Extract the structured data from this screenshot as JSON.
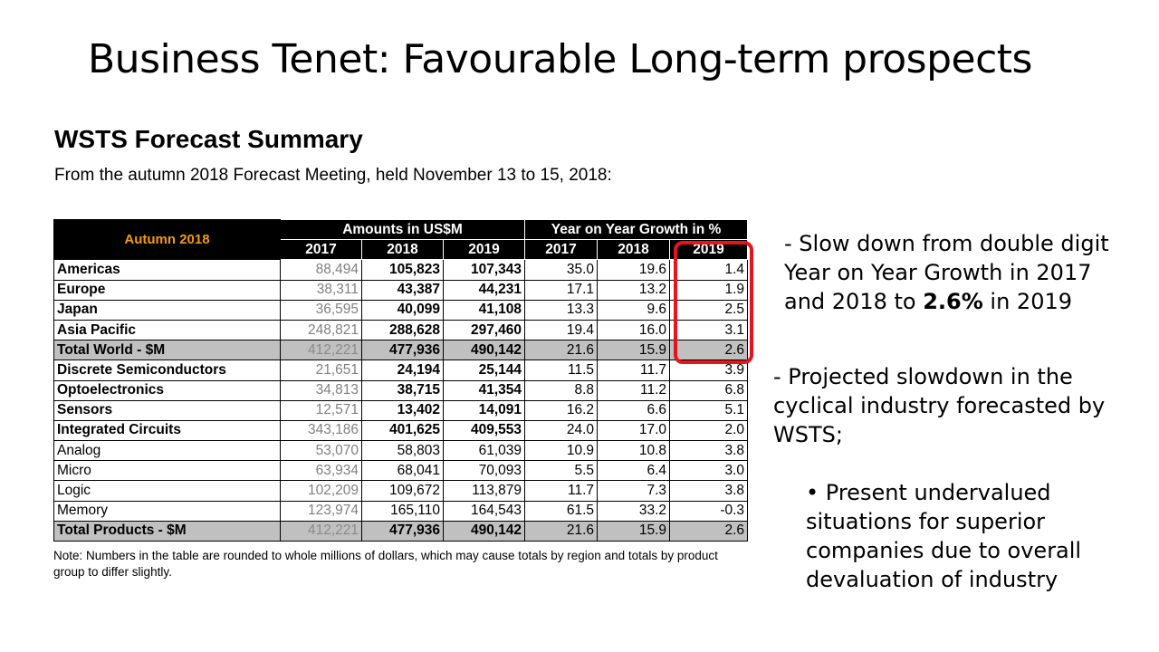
{
  "slide": {
    "title": "Business Tenet: Favourable Long-term prospects"
  },
  "wsts": {
    "title": "WSTS Forecast Summary",
    "subtitle": "From the autumn 2018 Forecast Meeting, held November 13 to 15, 2018:",
    "table": {
      "corner": "Autumn 2018",
      "group_amounts": "Amounts in US$M",
      "group_growth": "Year on Year Growth in %",
      "year_headers": [
        "2017",
        "2018",
        "2019",
        "2017",
        "2018",
        "2019"
      ],
      "rows": [
        {
          "label": "Americas",
          "values": [
            "88,494",
            "105,823",
            "107,343",
            "35.0",
            "19.6",
            "1.4"
          ]
        },
        {
          "label": "Europe",
          "values": [
            "38,311",
            "43,387",
            "44,231",
            "17.1",
            "13.2",
            "1.9"
          ]
        },
        {
          "label": "Japan",
          "values": [
            "36,595",
            "40,099",
            "41,108",
            "13.3",
            "9.6",
            "2.5"
          ]
        },
        {
          "label": "Asia Pacific",
          "values": [
            "248,821",
            "288,628",
            "297,460",
            "19.4",
            "16.0",
            "3.1"
          ]
        },
        {
          "label": "Total World - $M",
          "values": [
            "412,221",
            "477,936",
            "490,142",
            "21.6",
            "15.9",
            "2.6"
          ]
        },
        {
          "label": "Discrete Semiconductors",
          "values": [
            "21,651",
            "24,194",
            "25,144",
            "11.5",
            "11.7",
            "3.9"
          ]
        },
        {
          "label": "Optoelectronics",
          "values": [
            "34,813",
            "38,715",
            "41,354",
            "8.8",
            "11.2",
            "6.8"
          ]
        },
        {
          "label": "Sensors",
          "values": [
            "12,571",
            "13,402",
            "14,091",
            "16.2",
            "6.6",
            "5.1"
          ]
        },
        {
          "label": "Integrated Circuits",
          "values": [
            "343,186",
            "401,625",
            "409,553",
            "24.0",
            "17.0",
            "2.0"
          ]
        },
        {
          "label": "Analog",
          "values": [
            "53,070",
            "58,803",
            "61,039",
            "10.9",
            "10.8",
            "3.8"
          ]
        },
        {
          "label": "Micro",
          "values": [
            "63,934",
            "68,041",
            "70,093",
            "5.5",
            "6.4",
            "3.0"
          ]
        },
        {
          "label": "Logic",
          "values": [
            "102,209",
            "109,672",
            "113,879",
            "11.7",
            "7.3",
            "3.8"
          ]
        },
        {
          "label": "Memory",
          "values": [
            "123,974",
            "165,110",
            "164,543",
            "61.5",
            "33.2",
            "-0.3"
          ]
        },
        {
          "label": "Total Products - $M",
          "values": [
            "412,221",
            "477,936",
            "490,142",
            "21.6",
            "15.9",
            "2.6"
          ]
        }
      ]
    },
    "note": "Note: Numbers in the table are rounded to whole millions of dollars, which may cause totals by region and totals by product group to differ slightly."
  },
  "bullets": {
    "b1_pre": "- Slow down from double digit Year on Year Growth in 2017 and 2018 to ",
    "b1_bold": "2.6%",
    "b1_post": " in 2019",
    "b2": "- Projected slowdown in the cyclical industry forecasted by WSTS;",
    "b3": "• Present undervalued situations for superior companies due to overall devaluation of industry"
  },
  "colors": {
    "highlight": "#e8141c",
    "corner_text": "#f59a0e",
    "header_bg": "#000000",
    "total_row_bg": "#c0c0c0"
  }
}
